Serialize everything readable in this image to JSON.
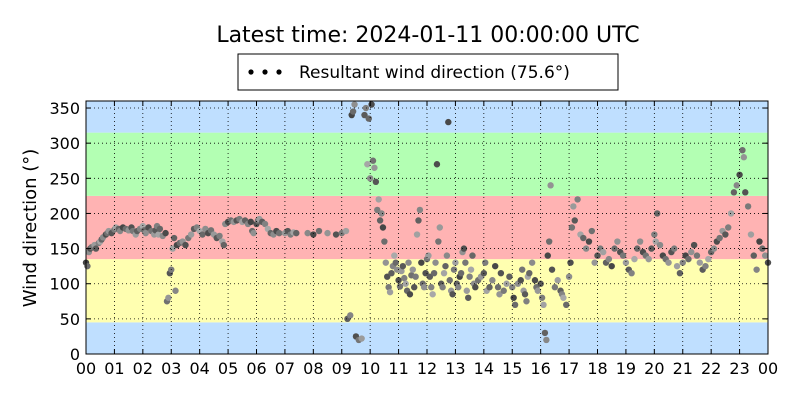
{
  "chart_data": {
    "type": "scatter",
    "title": "Latest time: 2024-01-11 00:00:00 UTC",
    "ylabel": "Wind direction (°)",
    "xlabel": "",
    "xlim": [
      0,
      24
    ],
    "ylim": [
      0,
      360
    ],
    "grid": true,
    "legend_placement": "top-center",
    "legend": [
      {
        "label": "Resultant wind direction (75.6°)",
        "marker": "dots",
        "color": "#000000"
      }
    ],
    "x_ticks": [
      "00",
      "01",
      "02",
      "03",
      "04",
      "05",
      "06",
      "07",
      "08",
      "09",
      "10",
      "11",
      "12",
      "13",
      "14",
      "15",
      "16",
      "17",
      "18",
      "19",
      "20",
      "21",
      "22",
      "23",
      "00"
    ],
    "y_ticks": [
      0,
      50,
      100,
      150,
      200,
      250,
      300,
      350
    ],
    "bands": [
      {
        "y0": 0,
        "y1": 45,
        "color": "#bfdfff"
      },
      {
        "y0": 45,
        "y1": 135,
        "color": "#ffffb0"
      },
      {
        "y0": 135,
        "y1": 225,
        "color": "#ffb3b3"
      },
      {
        "y0": 225,
        "y1": 315,
        "color": "#b3ffb3"
      },
      {
        "y0": 315,
        "y1": 360,
        "color": "#bfdfff"
      }
    ],
    "series": [
      {
        "marker_color_range": [
          "#333333",
          "#aaaaaa"
        ],
        "points": [
          [
            0.0,
            130
          ],
          [
            0.05,
            125
          ],
          [
            0.1,
            145
          ],
          [
            0.15,
            150
          ],
          [
            0.2,
            152
          ],
          [
            0.3,
            155
          ],
          [
            0.35,
            150
          ],
          [
            0.45,
            158
          ],
          [
            0.5,
            160
          ],
          [
            0.55,
            163
          ],
          [
            0.6,
            166
          ],
          [
            0.7,
            170
          ],
          [
            0.75,
            172
          ],
          [
            0.8,
            175
          ],
          [
            0.9,
            172
          ],
          [
            1.0,
            177
          ],
          [
            1.05,
            180
          ],
          [
            1.15,
            178
          ],
          [
            1.2,
            175
          ],
          [
            1.3,
            180
          ],
          [
            1.4,
            178
          ],
          [
            1.5,
            176
          ],
          [
            1.6,
            180
          ],
          [
            1.65,
            175
          ],
          [
            1.75,
            170
          ],
          [
            1.8,
            175
          ],
          [
            1.9,
            178
          ],
          [
            2.0,
            182
          ],
          [
            2.05,
            176
          ],
          [
            2.1,
            172
          ],
          [
            2.2,
            180
          ],
          [
            2.3,
            175
          ],
          [
            2.4,
            170
          ],
          [
            2.45,
            176
          ],
          [
            2.5,
            182
          ],
          [
            2.55,
            170
          ],
          [
            2.6,
            178
          ],
          [
            2.7,
            168
          ],
          [
            2.8,
            172
          ],
          [
            2.85,
            75
          ],
          [
            2.9,
            80
          ],
          [
            2.95,
            115
          ],
          [
            3.0,
            120
          ],
          [
            3.05,
            150
          ],
          [
            3.1,
            165
          ],
          [
            3.15,
            90
          ],
          [
            3.2,
            155
          ],
          [
            3.3,
            158
          ],
          [
            3.4,
            160
          ],
          [
            3.5,
            155
          ],
          [
            3.6,
            165
          ],
          [
            3.7,
            170
          ],
          [
            3.8,
            178
          ],
          [
            3.9,
            180
          ],
          [
            4.0,
            175
          ],
          [
            4.1,
            170
          ],
          [
            4.2,
            178
          ],
          [
            4.3,
            172
          ],
          [
            4.4,
            176
          ],
          [
            4.5,
            170
          ],
          [
            4.6,
            165
          ],
          [
            4.7,
            168
          ],
          [
            4.8,
            160
          ],
          [
            4.85,
            155
          ],
          [
            4.9,
            185
          ],
          [
            5.0,
            188
          ],
          [
            5.1,
            190
          ],
          [
            5.2,
            188
          ],
          [
            5.3,
            190
          ],
          [
            5.4,
            192
          ],
          [
            5.5,
            188
          ],
          [
            5.6,
            190
          ],
          [
            5.7,
            185
          ],
          [
            5.8,
            188
          ],
          [
            5.85,
            175
          ],
          [
            5.9,
            172
          ],
          [
            6.0,
            185
          ],
          [
            6.05,
            190
          ],
          [
            6.1,
            192
          ],
          [
            6.2,
            188
          ],
          [
            6.3,
            185
          ],
          [
            6.4,
            178
          ],
          [
            6.5,
            172
          ],
          [
            6.6,
            170
          ],
          [
            6.7,
            175
          ],
          [
            6.8,
            172
          ],
          [
            7.0,
            172
          ],
          [
            7.1,
            175
          ],
          [
            7.2,
            170
          ],
          [
            7.3,
            173
          ],
          [
            7.4,
            172
          ],
          [
            7.8,
            172
          ],
          [
            8.0,
            170
          ],
          [
            8.2,
            175
          ],
          [
            8.5,
            172
          ],
          [
            8.8,
            170
          ],
          [
            9.0,
            172
          ],
          [
            9.15,
            175
          ],
          [
            9.2,
            50
          ],
          [
            9.3,
            55
          ],
          [
            9.35,
            340
          ],
          [
            9.4,
            345
          ],
          [
            9.45,
            355
          ],
          [
            9.5,
            25
          ],
          [
            9.6,
            20
          ],
          [
            9.7,
            22
          ],
          [
            9.8,
            340
          ],
          [
            9.85,
            350
          ],
          [
            9.9,
            270
          ],
          [
            9.95,
            335
          ],
          [
            10.0,
            250
          ],
          [
            10.05,
            355
          ],
          [
            10.1,
            275
          ],
          [
            10.15,
            265
          ],
          [
            10.2,
            245
          ],
          [
            10.25,
            205
          ],
          [
            10.3,
            220
          ],
          [
            10.35,
            190
          ],
          [
            10.4,
            200
          ],
          [
            10.45,
            180
          ],
          [
            10.5,
            160
          ],
          [
            10.55,
            130
          ],
          [
            10.6,
            110
          ],
          [
            10.65,
            95
          ],
          [
            10.7,
            88
          ],
          [
            10.75,
            115
          ],
          [
            10.8,
            125
          ],
          [
            10.85,
            140
          ],
          [
            10.9,
            130
          ],
          [
            10.95,
            120
          ],
          [
            11.0,
            105
          ],
          [
            11.05,
            96
          ],
          [
            11.1,
            118
          ],
          [
            11.15,
            125
          ],
          [
            11.2,
            108
          ],
          [
            11.25,
            100
          ],
          [
            11.3,
            90
          ],
          [
            11.35,
            130
          ],
          [
            11.4,
            85
          ],
          [
            11.45,
            112
          ],
          [
            11.5,
            120
          ],
          [
            11.55,
            95
          ],
          [
            11.6,
            110
          ],
          [
            11.65,
            170
          ],
          [
            11.7,
            190
          ],
          [
            11.75,
            205
          ],
          [
            11.8,
            130
          ],
          [
            11.85,
            100
          ],
          [
            11.9,
            95
          ],
          [
            11.95,
            115
          ],
          [
            12.0,
            135
          ],
          [
            12.05,
            140
          ],
          [
            12.1,
            110
          ],
          [
            12.15,
            95
          ],
          [
            12.2,
            85
          ],
          [
            12.25,
            115
          ],
          [
            12.3,
            130
          ],
          [
            12.35,
            270
          ],
          [
            12.4,
            160
          ],
          [
            12.45,
            180
          ],
          [
            12.5,
            100
          ],
          [
            12.55,
            95
          ],
          [
            12.6,
            115
          ],
          [
            12.65,
            125
          ],
          [
            12.7,
            140
          ],
          [
            12.75,
            330
          ],
          [
            12.8,
            105
          ],
          [
            12.85,
            90
          ],
          [
            12.9,
            85
          ],
          [
            12.95,
            120
          ],
          [
            13.0,
            130
          ],
          [
            13.05,
            100
          ],
          [
            13.1,
            95
          ],
          [
            13.15,
            110
          ],
          [
            13.2,
            115
          ],
          [
            13.25,
            145
          ],
          [
            13.3,
            150
          ],
          [
            13.35,
            130
          ],
          [
            13.4,
            90
          ],
          [
            13.45,
            80
          ],
          [
            13.5,
            110
          ],
          [
            13.55,
            120
          ],
          [
            13.6,
            140
          ],
          [
            13.65,
            100
          ],
          [
            13.7,
            95
          ],
          [
            13.8,
            105
          ],
          [
            13.9,
            110
          ],
          [
            14.0,
            115
          ],
          [
            14.05,
            130
          ],
          [
            14.1,
            90
          ],
          [
            14.2,
            95
          ],
          [
            14.3,
            105
          ],
          [
            14.4,
            125
          ],
          [
            14.5,
            95
          ],
          [
            14.55,
            85
          ],
          [
            14.6,
            115
          ],
          [
            14.7,
            90
          ],
          [
            14.8,
            100
          ],
          [
            14.9,
            110
          ],
          [
            15.0,
            95
          ],
          [
            15.05,
            80
          ],
          [
            15.1,
            70
          ],
          [
            15.2,
            100
          ],
          [
            15.3,
            105
          ],
          [
            15.35,
            120
          ],
          [
            15.4,
            90
          ],
          [
            15.45,
            85
          ],
          [
            15.5,
            75
          ],
          [
            15.55,
            110
          ],
          [
            15.6,
            115
          ],
          [
            15.7,
            130
          ],
          [
            15.8,
            105
          ],
          [
            15.85,
            95
          ],
          [
            15.9,
            90
          ],
          [
            16.0,
            100
          ],
          [
            16.05,
            80
          ],
          [
            16.1,
            70
          ],
          [
            16.15,
            30
          ],
          [
            16.2,
            20
          ],
          [
            16.25,
            140
          ],
          [
            16.3,
            160
          ],
          [
            16.35,
            240
          ],
          [
            16.4,
            120
          ],
          [
            16.5,
            95
          ],
          [
            16.6,
            105
          ],
          [
            16.7,
            90
          ],
          [
            16.75,
            85
          ],
          [
            16.8,
            80
          ],
          [
            16.9,
            70
          ],
          [
            17.0,
            110
          ],
          [
            17.05,
            130
          ],
          [
            17.1,
            180
          ],
          [
            17.15,
            210
          ],
          [
            17.2,
            190
          ],
          [
            17.3,
            220
          ],
          [
            17.4,
            170
          ],
          [
            17.5,
            165
          ],
          [
            17.6,
            150
          ],
          [
            17.7,
            160
          ],
          [
            17.8,
            175
          ],
          [
            17.9,
            130
          ],
          [
            18.0,
            140
          ],
          [
            18.1,
            150
          ],
          [
            18.2,
            145
          ],
          [
            18.3,
            130
          ],
          [
            18.4,
            135
          ],
          [
            18.5,
            125
          ],
          [
            18.6,
            150
          ],
          [
            18.7,
            160
          ],
          [
            18.8,
            145
          ],
          [
            18.9,
            140
          ],
          [
            19.0,
            130
          ],
          [
            19.1,
            120
          ],
          [
            19.2,
            115
          ],
          [
            19.3,
            135
          ],
          [
            19.4,
            150
          ],
          [
            19.5,
            160
          ],
          [
            19.6,
            145
          ],
          [
            19.7,
            140
          ],
          [
            19.8,
            135
          ],
          [
            19.9,
            150
          ],
          [
            20.0,
            170
          ],
          [
            20.05,
            160
          ],
          [
            20.1,
            200
          ],
          [
            20.2,
            155
          ],
          [
            20.3,
            140
          ],
          [
            20.4,
            135
          ],
          [
            20.5,
            130
          ],
          [
            20.6,
            145
          ],
          [
            20.7,
            150
          ],
          [
            20.8,
            125
          ],
          [
            20.9,
            115
          ],
          [
            21.0,
            130
          ],
          [
            21.1,
            140
          ],
          [
            21.2,
            135
          ],
          [
            21.3,
            145
          ],
          [
            21.4,
            155
          ],
          [
            21.5,
            140
          ],
          [
            21.6,
            130
          ],
          [
            21.7,
            120
          ],
          [
            21.8,
            125
          ],
          [
            21.9,
            135
          ],
          [
            22.0,
            145
          ],
          [
            22.1,
            150
          ],
          [
            22.2,
            160
          ],
          [
            22.3,
            165
          ],
          [
            22.4,
            175
          ],
          [
            22.5,
            170
          ],
          [
            22.6,
            180
          ],
          [
            22.7,
            200
          ],
          [
            22.8,
            230
          ],
          [
            22.9,
            240
          ],
          [
            23.0,
            255
          ],
          [
            23.1,
            290
          ],
          [
            23.15,
            280
          ],
          [
            23.2,
            230
          ],
          [
            23.3,
            210
          ],
          [
            23.4,
            170
          ],
          [
            23.5,
            140
          ],
          [
            23.6,
            120
          ],
          [
            23.7,
            160
          ],
          [
            23.8,
            150
          ],
          [
            23.9,
            140
          ],
          [
            24.0,
            130
          ]
        ]
      }
    ]
  }
}
